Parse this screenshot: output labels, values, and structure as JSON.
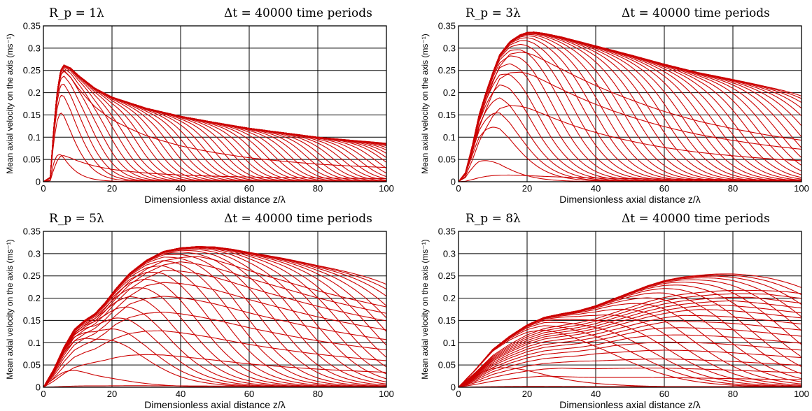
{
  "chart_data": [
    {
      "type": "line",
      "title_left": "R_p = 1λ",
      "title_right": "Δt = 40000 time periods",
      "xlabel": "Dimensionless axial distance z/λ",
      "ylabel": "Mean axial velocity on the axis (ms⁻¹)",
      "xlim": [
        0,
        100
      ],
      "ylim": [
        0,
        0.35
      ],
      "xticks": [
        "0",
        "20",
        "40",
        "60",
        "80",
        "100"
      ],
      "yticks": [
        "0",
        "0.05",
        "0.1",
        "0.15",
        "0.2",
        "0.25",
        "0.3",
        "0.35"
      ],
      "grid": true,
      "color": "#cc0000",
      "envelope": {
        "x": [
          0,
          2,
          3,
          4,
          5,
          6,
          8,
          10,
          15,
          20,
          30,
          40,
          50,
          60,
          70,
          80,
          90,
          100
        ],
        "y": [
          0,
          0.01,
          0.12,
          0.2,
          0.25,
          0.262,
          0.255,
          0.24,
          0.21,
          0.19,
          0.165,
          0.147,
          0.133,
          0.12,
          0.11,
          0.1,
          0.093,
          0.087
        ]
      },
      "front_positions": [
        0.5,
        7,
        10,
        12.5,
        15,
        17.5,
        20,
        22.5,
        25,
        27.5,
        30,
        32.5,
        35,
        37.5,
        40,
        42.5,
        45,
        47.5,
        50,
        52.5,
        55,
        57.5,
        60,
        62.5,
        65,
        67.5,
        70,
        72.5,
        75,
        77.5,
        80,
        82.5,
        85,
        87.5,
        90,
        92.5,
        95,
        97.5,
        100,
        102,
        104,
        106,
        108,
        110,
        112,
        114,
        116,
        118,
        120
      ],
      "front_spread": 4,
      "unsettled_scale": [
        0.232,
        0.955
      ]
    },
    {
      "type": "line",
      "title_left": "R_p = 3λ",
      "title_right": "Δt = 40000 time periods",
      "xlabel": "Dimensionless axial distance z/λ",
      "ylabel": "Mean axial velocity on the axis (ms⁻¹)",
      "xlim": [
        0,
        100
      ],
      "ylim": [
        0,
        0.35
      ],
      "xticks": [
        "0",
        "20",
        "40",
        "60",
        "80",
        "100"
      ],
      "yticks": [
        "0",
        "0.05",
        "0.1",
        "0.15",
        "0.2",
        "0.25",
        "0.3",
        "0.35"
      ],
      "grid": true,
      "color": "#cc0000",
      "envelope": {
        "x": [
          0,
          2,
          4,
          6,
          8,
          10,
          12,
          15,
          18,
          20,
          22,
          25,
          30,
          40,
          50,
          60,
          70,
          80,
          90,
          100
        ],
        "y": [
          0,
          0.02,
          0.08,
          0.15,
          0.2,
          0.245,
          0.285,
          0.315,
          0.33,
          0.335,
          0.336,
          0.333,
          0.325,
          0.305,
          0.285,
          0.264,
          0.245,
          0.23,
          0.215,
          0.202
        ]
      },
      "front_positions": [
        1,
        10,
        13,
        16,
        19,
        22,
        25,
        28,
        31,
        34,
        37,
        40,
        43,
        46,
        49,
        52,
        55,
        58,
        61,
        64,
        67,
        70,
        73,
        76,
        79,
        82,
        85,
        88,
        91,
        94,
        97,
        100,
        103,
        106,
        109,
        112,
        115,
        118
      ],
      "front_spread": 6,
      "unsettled_scale": [
        0.06,
        0.6,
        0.81,
        0.91
      ]
    },
    {
      "type": "line",
      "title_left": "R_p = 5λ",
      "title_right": "Δt = 40000 time periods",
      "xlabel": "Dimensionless axial distance z/λ",
      "ylabel": "Mean axial velocity on the axis (ms⁻¹)",
      "xlim": [
        0,
        100
      ],
      "ylim": [
        0,
        0.35
      ],
      "xticks": [
        "0",
        "20",
        "40",
        "60",
        "80",
        "100"
      ],
      "yticks": [
        "0",
        "0.05",
        "0.1",
        "0.15",
        "0.2",
        "0.25",
        "0.3",
        "0.35"
      ],
      "grid": true,
      "color": "#cc0000",
      "envelope": {
        "x": [
          0,
          3,
          6,
          9,
          12,
          15,
          18,
          21,
          25,
          30,
          35,
          40,
          45,
          50,
          55,
          60,
          70,
          80,
          90,
          100
        ],
        "y": [
          0,
          0.04,
          0.09,
          0.13,
          0.15,
          0.165,
          0.19,
          0.22,
          0.255,
          0.285,
          0.305,
          0.313,
          0.316,
          0.315,
          0.31,
          0.303,
          0.29,
          0.275,
          0.262,
          0.25
        ]
      },
      "front_positions": [
        2,
        20,
        24,
        28,
        32,
        36,
        40,
        44,
        48,
        52,
        56,
        60,
        64,
        68,
        72,
        76,
        80,
        84,
        88,
        92,
        96,
        100,
        104,
        108,
        112,
        116,
        120
      ],
      "front_spread": 8,
      "unsettled_scale": [
        0.02,
        0.34,
        0.52,
        0.64,
        0.73,
        0.8,
        0.86,
        0.9,
        0.93
      ]
    },
    {
      "type": "line",
      "title_left": "R_p = 8λ",
      "title_right": "Δt = 40000 time periods",
      "xlabel": "Dimensionless axial distance z/λ",
      "ylabel": "Mean axial velocity on the axis (ms⁻¹)",
      "xlim": [
        0,
        100
      ],
      "ylim": [
        0,
        0.35
      ],
      "xticks": [
        "0",
        "20",
        "40",
        "60",
        "80",
        "100"
      ],
      "yticks": [
        "0",
        "0.05",
        "0.1",
        "0.15",
        "0.2",
        "0.25",
        "0.3",
        "0.35"
      ],
      "grid": true,
      "color": "#cc0000",
      "envelope": {
        "x": [
          0,
          5,
          10,
          15,
          20,
          25,
          30,
          35,
          40,
          45,
          50,
          55,
          60,
          65,
          70,
          75,
          80,
          85,
          90,
          95,
          100
        ],
        "y": [
          0,
          0.04,
          0.085,
          0.115,
          0.14,
          0.157,
          0.165,
          0.172,
          0.183,
          0.198,
          0.213,
          0.228,
          0.24,
          0.248,
          0.253,
          0.257,
          0.259,
          0.259,
          0.258,
          0.256,
          0.254
        ]
      },
      "front_positions": [
        10,
        40,
        45,
        50,
        55,
        60,
        65,
        70,
        75,
        80,
        85,
        90,
        95,
        100,
        105,
        110,
        115,
        120
      ],
      "front_spread": 10,
      "unsettled_scale": [
        0.015,
        0.16,
        0.26,
        0.34,
        0.41,
        0.47,
        0.52,
        0.57,
        0.61,
        0.65,
        0.69,
        0.72,
        0.75,
        0.78,
        0.81,
        0.84
      ]
    }
  ]
}
